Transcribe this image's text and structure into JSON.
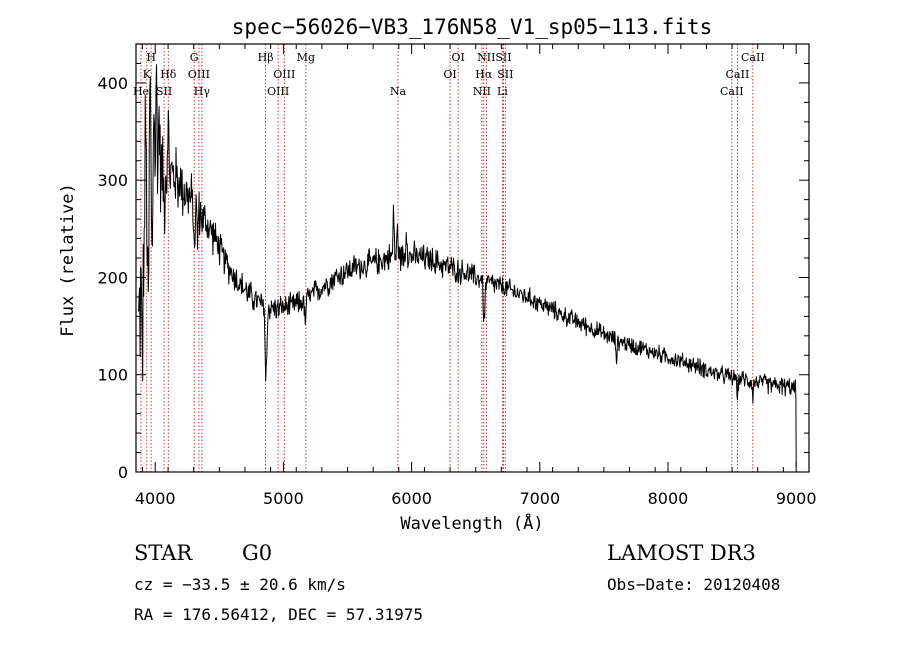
{
  "chart_data": {
    "type": "line",
    "title": "spec−56026−VB3_176N58_V1_sp05−113.fits",
    "xlabel": "Wavelength (Å)",
    "ylabel": "Flux (relative)",
    "xlim": [
      3850,
      9100
    ],
    "ylim": [
      0,
      440
    ],
    "xticks": [
      4000,
      5000,
      6000,
      7000,
      8000,
      9000
    ],
    "xtick_labels": [
      "4000",
      "5000",
      "6000",
      "7000",
      "8000",
      "9000"
    ],
    "yticks": [
      0,
      100,
      200,
      300,
      400
    ],
    "ytick_labels": [
      "0",
      "100",
      "200",
      "300",
      "400"
    ],
    "grid": false,
    "line_color": "#000000",
    "marker_color": "#cc2222",
    "lines": [
      {
        "label": "He",
        "wave": 3889,
        "row": 3
      },
      {
        "label": "K",
        "wave": 3934,
        "row": 2
      },
      {
        "label": "H",
        "wave": 3968,
        "row": 1
      },
      {
        "label": "SⅠⅠ",
        "wave": 4069,
        "row": 3
      },
      {
        "label": "Hδ",
        "wave": 4102,
        "row": 2
      },
      {
        "label": "G",
        "wave": 4304,
        "row": 1
      },
      {
        "label": "OⅠⅠⅠ",
        "wave": 4341,
        "row": 2
      },
      {
        "label": "Hγ",
        "wave": 4364,
        "row": 3
      },
      {
        "label": "Hβ",
        "wave": 4861,
        "row": 1
      },
      {
        "label": "OⅠⅠⅠ",
        "wave": 4959,
        "row": 3
      },
      {
        "label": "OⅠⅠⅠ",
        "wave": 5007,
        "row": 2
      },
      {
        "label": "Mg",
        "wave": 5175,
        "row": 1
      },
      {
        "label": "Na",
        "wave": 5894,
        "row": 3
      },
      {
        "label": "OⅠ",
        "wave": 6300,
        "row": 2
      },
      {
        "label": "OⅠ",
        "wave": 6363,
        "row": 1
      },
      {
        "label": "NⅠⅠ",
        "wave": 6548,
        "row": 3
      },
      {
        "label": "Hα",
        "wave": 6563,
        "row": 2
      },
      {
        "label": "NⅠⅠ",
        "wave": 6583,
        "row": 1
      },
      {
        "label": "SⅠⅠ",
        "wave": 6717,
        "row": 1
      },
      {
        "label": "Li",
        "wave": 6708,
        "row": 3
      },
      {
        "label": "SⅠⅠ",
        "wave": 6731,
        "row": 2
      },
      {
        "label": "CaⅠⅠ",
        "wave": 8498,
        "row": 3
      },
      {
        "label": "CaⅠⅠ",
        "wave": 8542,
        "row": 2
      },
      {
        "label": "CaⅠⅠ",
        "wave": 8662,
        "row": 1
      }
    ],
    "continuum": [
      [
        3870,
        150
      ],
      [
        3920,
        240
      ],
      [
        3980,
        300
      ],
      [
        4050,
        310
      ],
      [
        4150,
        305
      ],
      [
        4250,
        285
      ],
      [
        4350,
        265
      ],
      [
        4450,
        245
      ],
      [
        4550,
        215
      ],
      [
        4650,
        195
      ],
      [
        4750,
        180
      ],
      [
        4850,
        170
      ],
      [
        4950,
        168
      ],
      [
        5050,
        170
      ],
      [
        5150,
        175
      ],
      [
        5250,
        185
      ],
      [
        5400,
        200
      ],
      [
        5550,
        210
      ],
      [
        5700,
        215
      ],
      [
        5850,
        222
      ],
      [
        6000,
        222
      ],
      [
        6150,
        218
      ],
      [
        6300,
        210
      ],
      [
        6450,
        203
      ],
      [
        6600,
        195
      ],
      [
        6750,
        188
      ],
      [
        6900,
        180
      ],
      [
        7050,
        170
      ],
      [
        7200,
        160
      ],
      [
        7400,
        148
      ],
      [
        7600,
        135
      ],
      [
        7800,
        127
      ],
      [
        8000,
        118
      ],
      [
        8200,
        110
      ],
      [
        8400,
        100
      ],
      [
        8600,
        95
      ],
      [
        8800,
        90
      ],
      [
        8950,
        87
      ],
      [
        9000,
        85
      ]
    ],
    "spikes": [
      [
        3900,
        -90
      ],
      [
        3925,
        120
      ],
      [
        3945,
        -110
      ],
      [
        3960,
        140
      ],
      [
        3975,
        -80
      ],
      [
        3990,
        80
      ],
      [
        4010,
        110
      ],
      [
        4030,
        70
      ],
      [
        4070,
        -40
      ],
      [
        4100,
        60
      ],
      [
        4304,
        -50
      ],
      [
        4330,
        -30
      ],
      [
        4861,
        -75
      ],
      [
        4870,
        -45
      ],
      [
        5170,
        -30
      ],
      [
        5860,
        55
      ],
      [
        5890,
        30
      ],
      [
        5960,
        35
      ],
      [
        6563,
        -35
      ],
      [
        6570,
        -25
      ],
      [
        7600,
        -20
      ],
      [
        8542,
        -18
      ],
      [
        8662,
        -15
      ]
    ],
    "noise_amp": [
      [
        3870,
        60
      ],
      [
        4100,
        30
      ],
      [
        4500,
        14
      ],
      [
        5000,
        10
      ],
      [
        6000,
        12
      ],
      [
        7000,
        8
      ],
      [
        8000,
        7
      ],
      [
        9000,
        8
      ]
    ]
  },
  "info": {
    "class_label": "STAR",
    "subclass": "G0",
    "cz_text": "cz = −33.5 ± 20.6 km/s",
    "coords_text": "RA = 176.56412, DEC =  57.31975",
    "survey": "LAMOST DR3",
    "obs_date": "Obs−Date: 20120408"
  }
}
